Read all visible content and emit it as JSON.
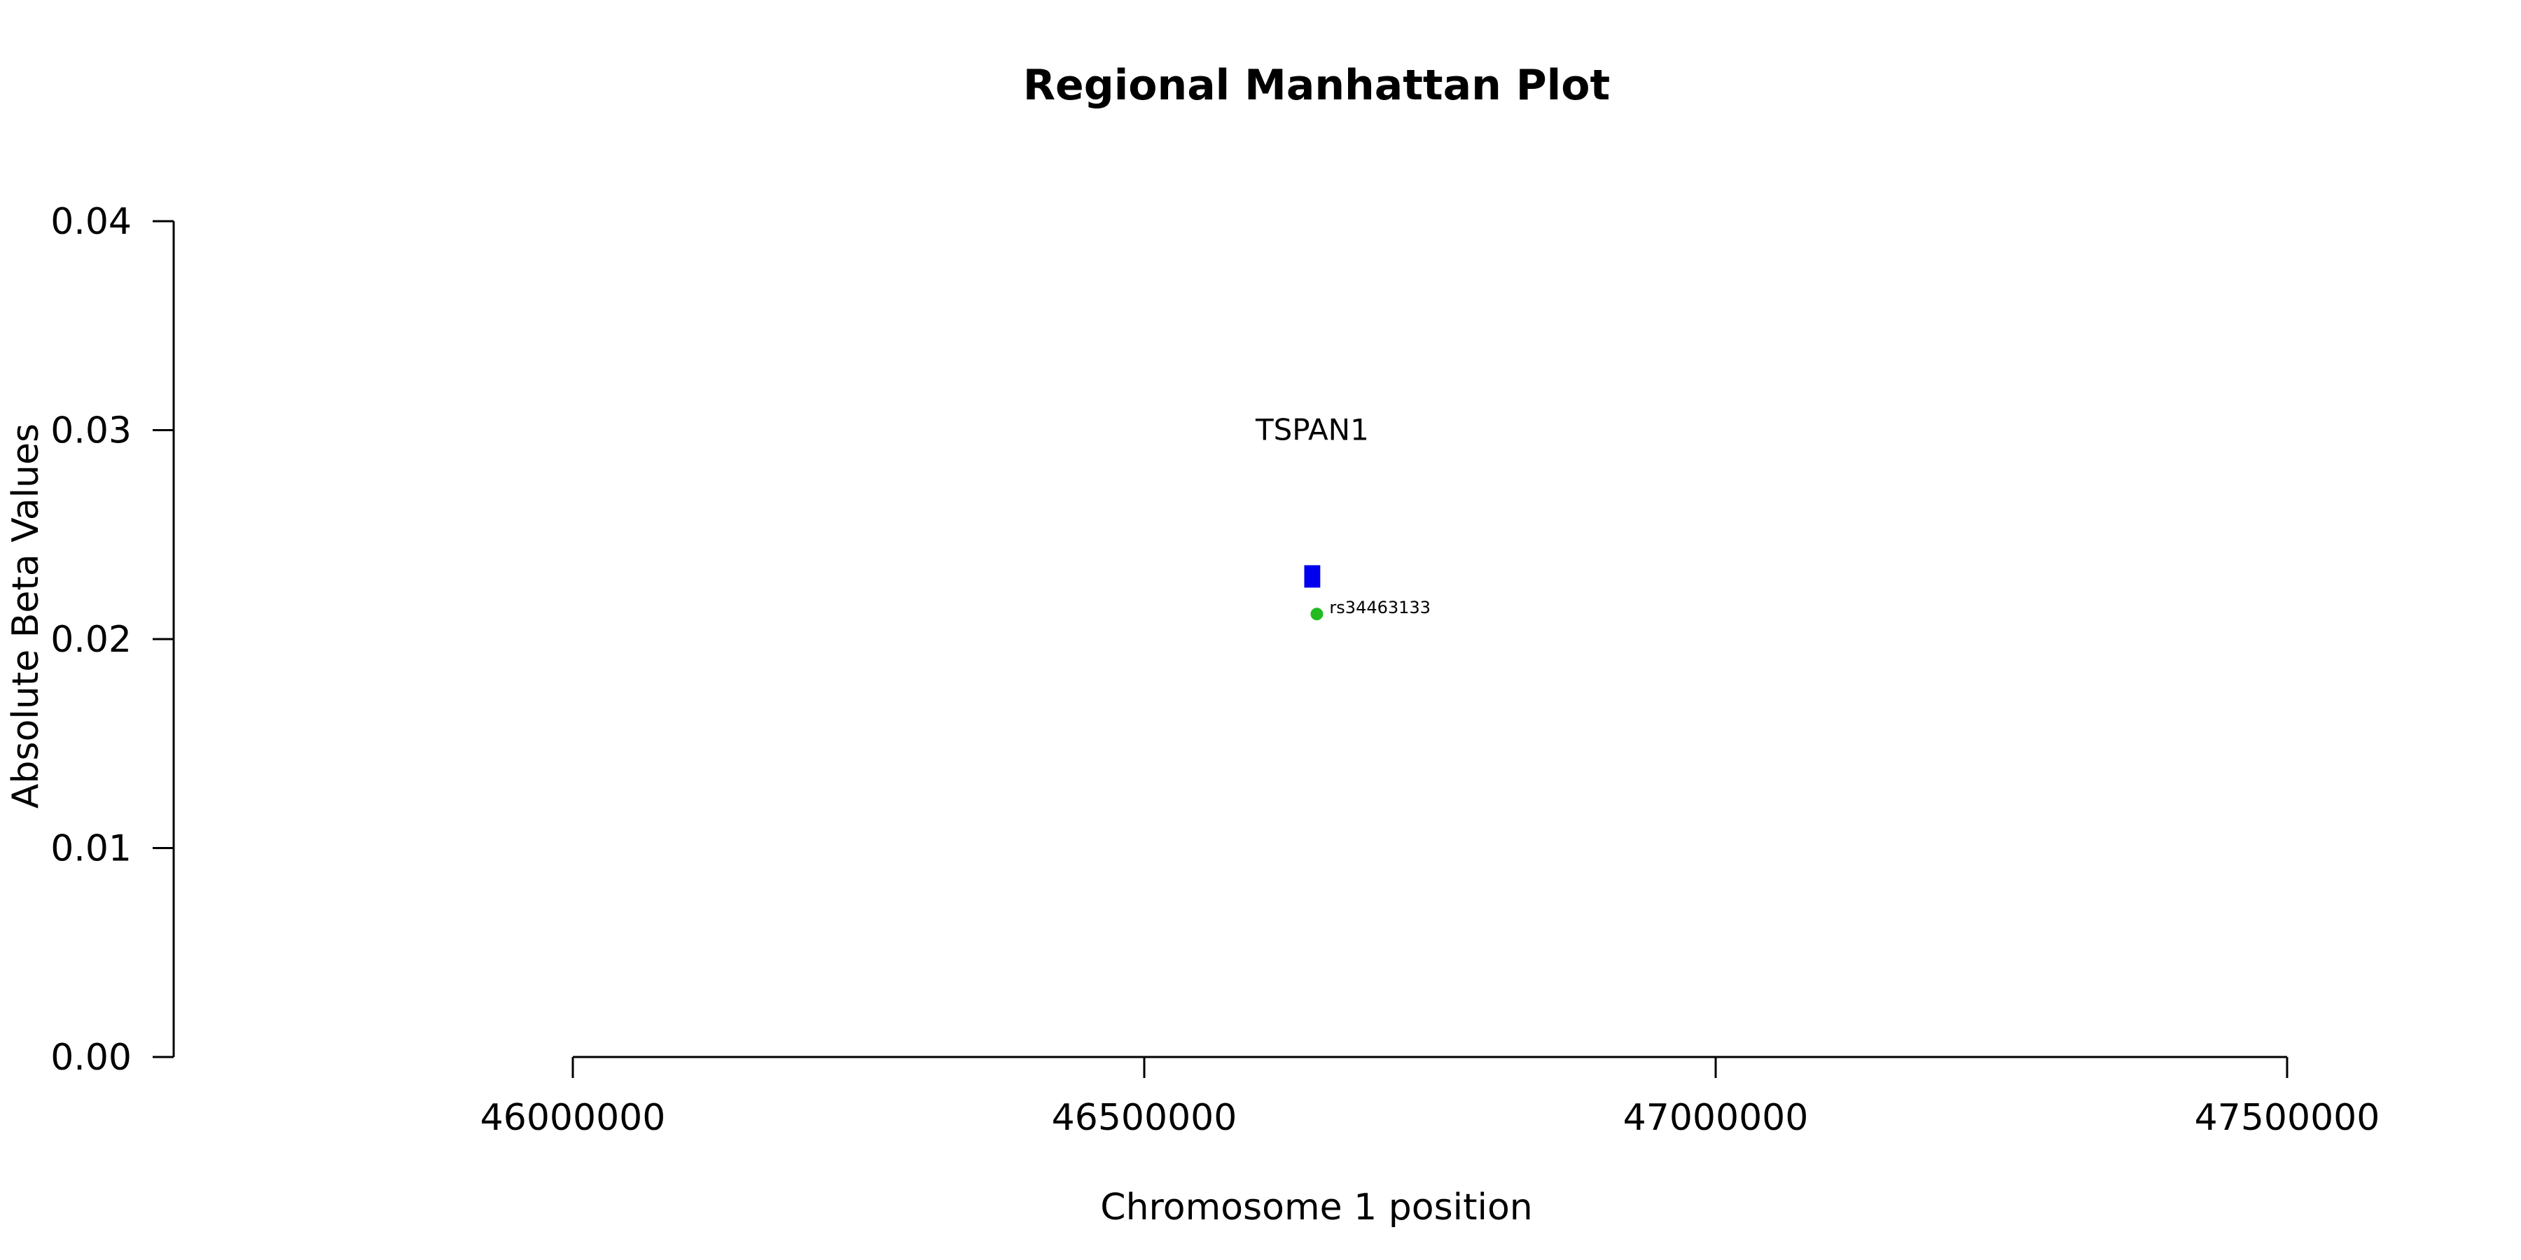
{
  "chart_data": {
    "type": "scatter",
    "title": "Regional Manhattan Plot",
    "xlabel": "Chromosome 1 position",
    "ylabel": "Absolute Beta Values",
    "xlim": [
      45652000,
      47652000
    ],
    "ylim": [
      0,
      0.04
    ],
    "x_ticks": [
      46000000,
      46500000,
      47000000,
      47500000
    ],
    "x_tick_labels": [
      "46000000",
      "46500000",
      "47000000",
      "47500000"
    ],
    "y_ticks": [
      0,
      0.01,
      0.02,
      0.03,
      0.04
    ],
    "y_tick_labels": [
      "0.00",
      "0.01",
      "0.02",
      "0.03",
      "0.04"
    ],
    "grid": false,
    "genes": [
      {
        "name": "TSPAN1",
        "start": 46640000,
        "end": 46654000,
        "y": 0.023,
        "color": "#0000ee"
      }
    ],
    "points": [
      {
        "x": 46651000,
        "y": 0.0212,
        "label": "rs34463133",
        "color": "#22bb22"
      }
    ]
  }
}
